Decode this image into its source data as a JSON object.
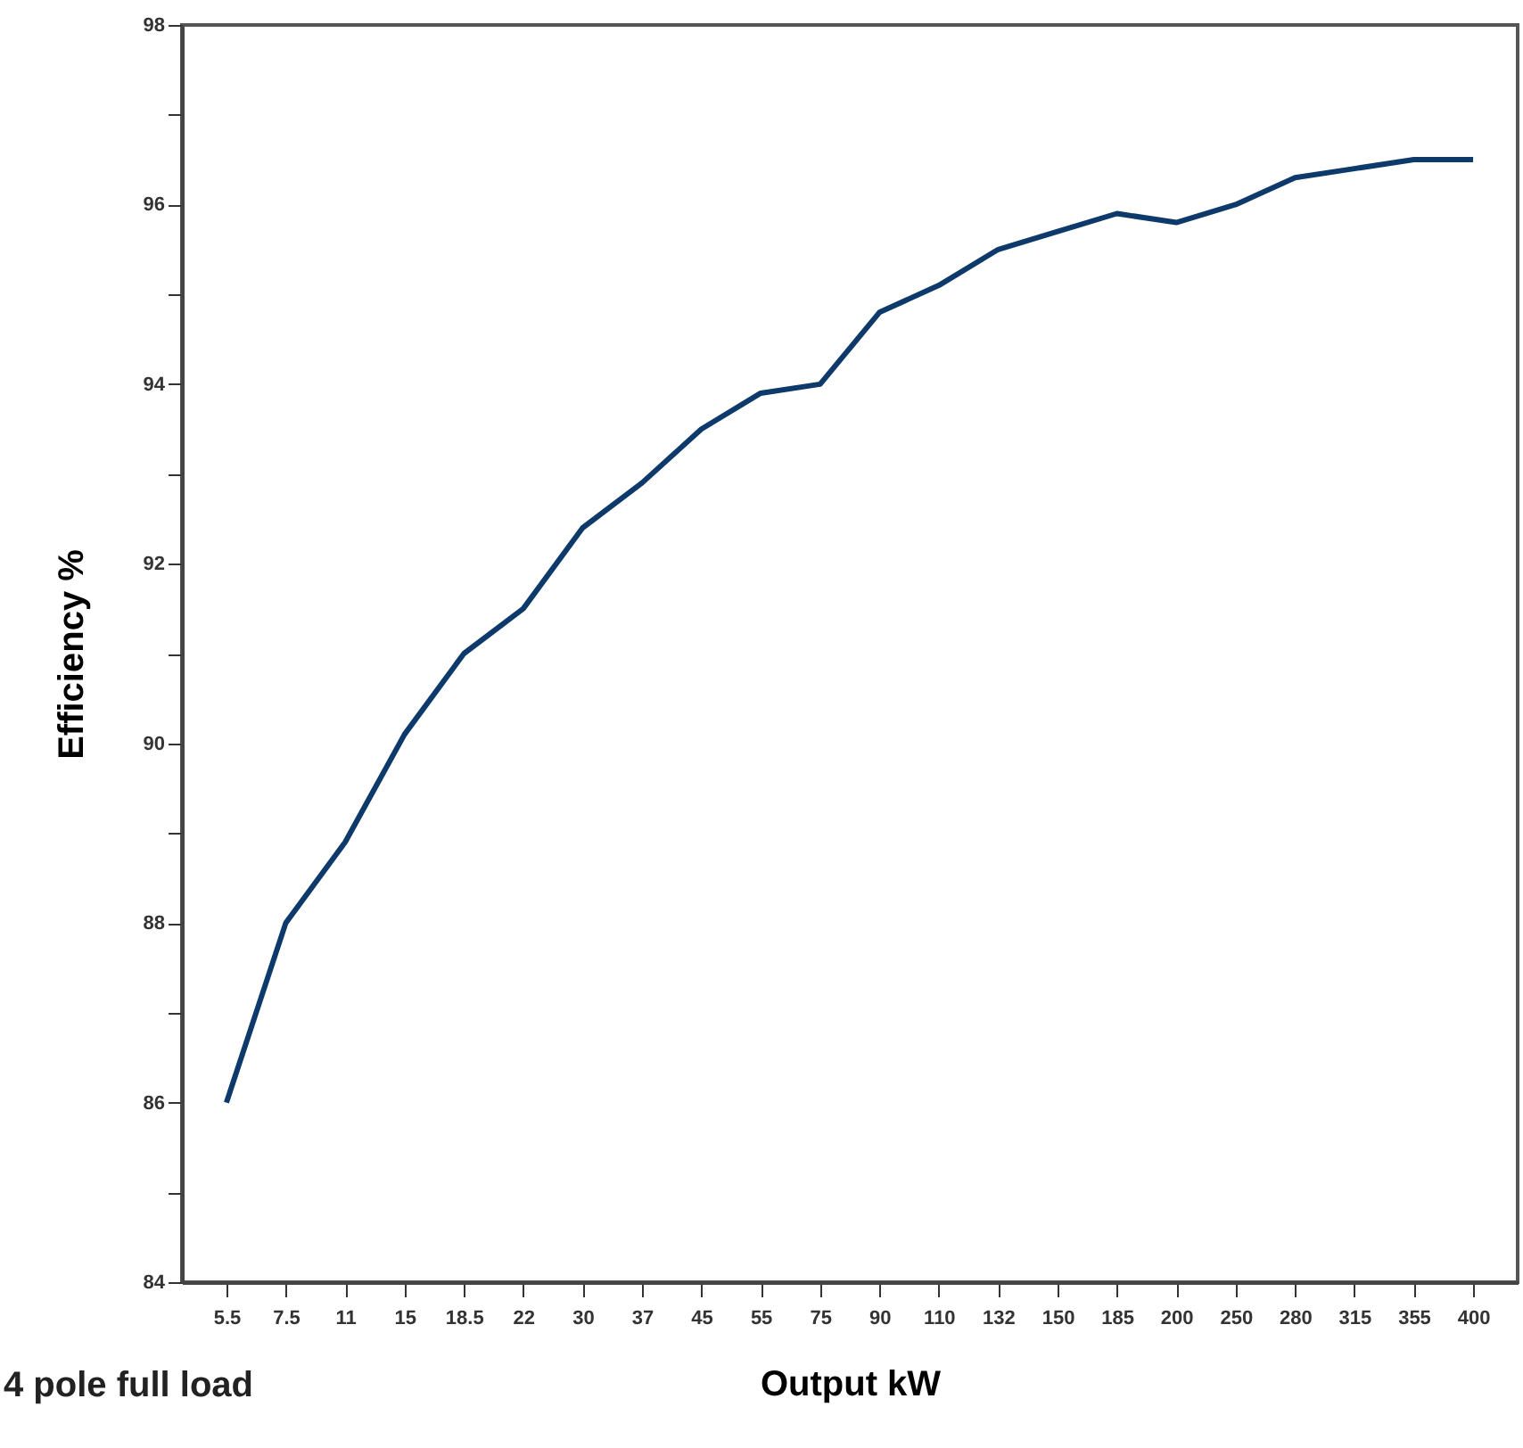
{
  "chart_data": {
    "type": "line",
    "xlabel": "Output kW",
    "ylabel": "Efficiency %",
    "annotations": [
      "4 pole full load"
    ],
    "categories": [
      "5.5",
      "7.5",
      "11",
      "15",
      "18.5",
      "22",
      "30",
      "37",
      "45",
      "55",
      "75",
      "90",
      "110",
      "132",
      "150",
      "185",
      "200",
      "250",
      "280",
      "315",
      "355",
      "400"
    ],
    "series": [
      {
        "color": "#0d3a6b",
        "values": [
          86.0,
          88.0,
          88.9,
          90.1,
          91.0,
          91.5,
          92.4,
          92.9,
          93.5,
          93.9,
          94.0,
          94.8,
          95.1,
          95.5,
          95.7,
          95.9,
          95.8,
          96.0,
          96.3,
          96.4,
          96.5,
          96.5
        ]
      }
    ],
    "ylim": [
      84,
      98
    ],
    "yticks": [
      84,
      {
        "value": 85,
        "label": null
      },
      86,
      {
        "value": 87,
        "label": null
      },
      88,
      {
        "value": 89,
        "label": null
      },
      90,
      {
        "value": 91,
        "label": null
      },
      92,
      {
        "value": 93,
        "label": null
      },
      94,
      {
        "value": 95,
        "label": null
      },
      96,
      {
        "value": 97,
        "label": null
      },
      98
    ],
    "grid": false,
    "marker": "none",
    "line_style": "solid"
  }
}
